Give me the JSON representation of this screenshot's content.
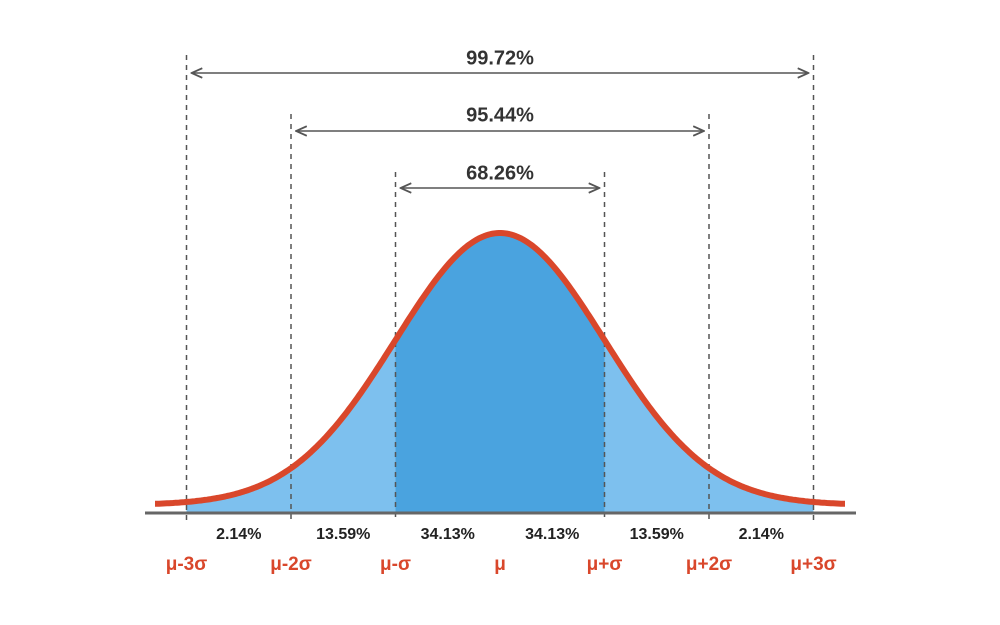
{
  "spans": [
    {
      "label": "99.72%"
    },
    {
      "label": "95.44%"
    },
    {
      "label": "68.26%"
    }
  ],
  "segments": [
    {
      "label": "2.14%"
    },
    {
      "label": "13.59%"
    },
    {
      "label": "34.13%"
    },
    {
      "label": "34.13%"
    },
    {
      "label": "13.59%"
    },
    {
      "label": "2.14%"
    }
  ],
  "axis_labels": [
    "μ-3σ",
    "μ-2σ",
    "μ-σ",
    "μ",
    "μ+σ",
    "μ+2σ",
    "μ+3σ"
  ]
}
